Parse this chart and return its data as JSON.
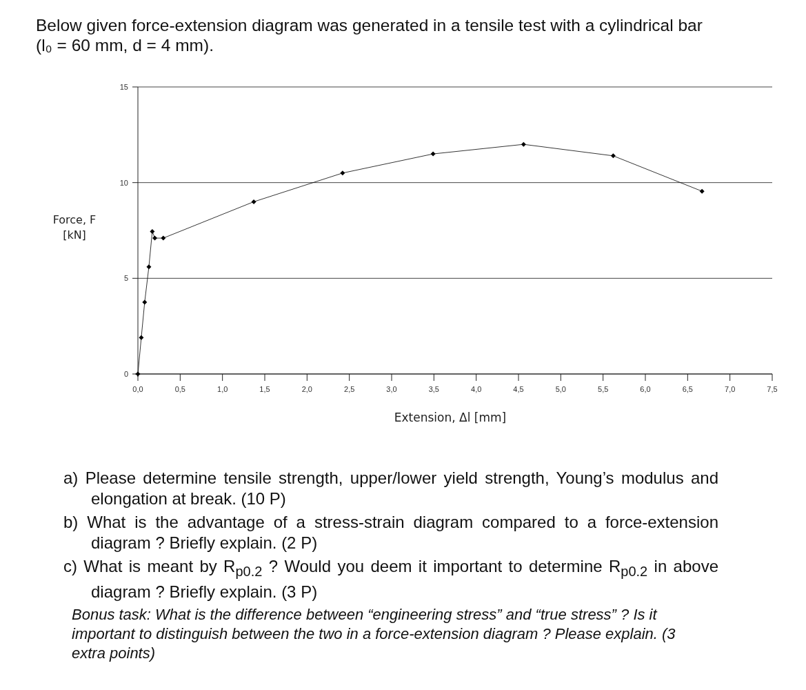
{
  "chart_data": {
    "type": "line",
    "title": "Below given force-extension diagram was generated in a tensile test with a cylindrical bar (l₀ = 60 mm, d = 4 mm).",
    "xlabel": "Extension, Δl [mm]",
    "ylabel": "Force, F\n[kN]",
    "x": [
      0,
      0.04,
      0.08,
      0.13,
      0.17,
      0.2,
      0.3,
      1.37,
      2.42,
      3.49,
      4.56,
      5.62,
      6.67
    ],
    "series": [
      {
        "color": "#000000",
        "values": [
          0,
          1.9,
          3.75,
          5.6,
          7.45,
          7.1,
          7.1,
          9.0,
          10.5,
          11.5,
          12.0,
          11.4,
          9.55
        ]
      }
    ],
    "xlim": [
      0,
      7.5
    ],
    "xticks": [
      {
        "value": 0,
        "label": "0,0"
      },
      {
        "value": 0.5,
        "label": "0,5"
      },
      {
        "value": 1,
        "label": "1,0"
      },
      {
        "value": 1.5,
        "label": "1,5"
      },
      {
        "value": 2,
        "label": "2,0"
      },
      {
        "value": 2.5,
        "label": "2,5"
      },
      {
        "value": 3,
        "label": "3,0"
      },
      {
        "value": 3.5,
        "label": "3,5"
      },
      {
        "value": 4,
        "label": "4,0"
      },
      {
        "value": 4.5,
        "label": "4,5"
      },
      {
        "value": 5,
        "label": "5,0"
      },
      {
        "value": 5.5,
        "label": "5,5"
      },
      {
        "value": 6,
        "label": "6,0"
      },
      {
        "value": 6.5,
        "label": "6,5"
      },
      {
        "value": 7,
        "label": "7,0"
      },
      {
        "value": 7.5,
        "label": "7,5"
      }
    ],
    "ylim": [
      0,
      15
    ],
    "yticks": [
      0,
      5,
      10,
      15
    ],
    "grid": "y",
    "marker": "diamond",
    "line_style": "solid",
    "annotations": [
      "a) Please determine tensile strength, upper/lower yield strength, Young’s modulus and elongation at break. (10 P)",
      "b) What is the advantage of a stress-strain diagram compared to a force-extension diagram ? Briefly explain. (2 P)",
      "c) What is meant by R$_{p0.2}$ ? Would you deem it important to determine R$_{p0.2}$ in above diagram ? Briefly explain. (3 P)",
      "Bonus task: What is the difference between “engineering stress” and “true stress” ? Is it important to distinguish between the two in a force-extension diagram ? Please explain. (3 extra points)"
    ]
  }
}
